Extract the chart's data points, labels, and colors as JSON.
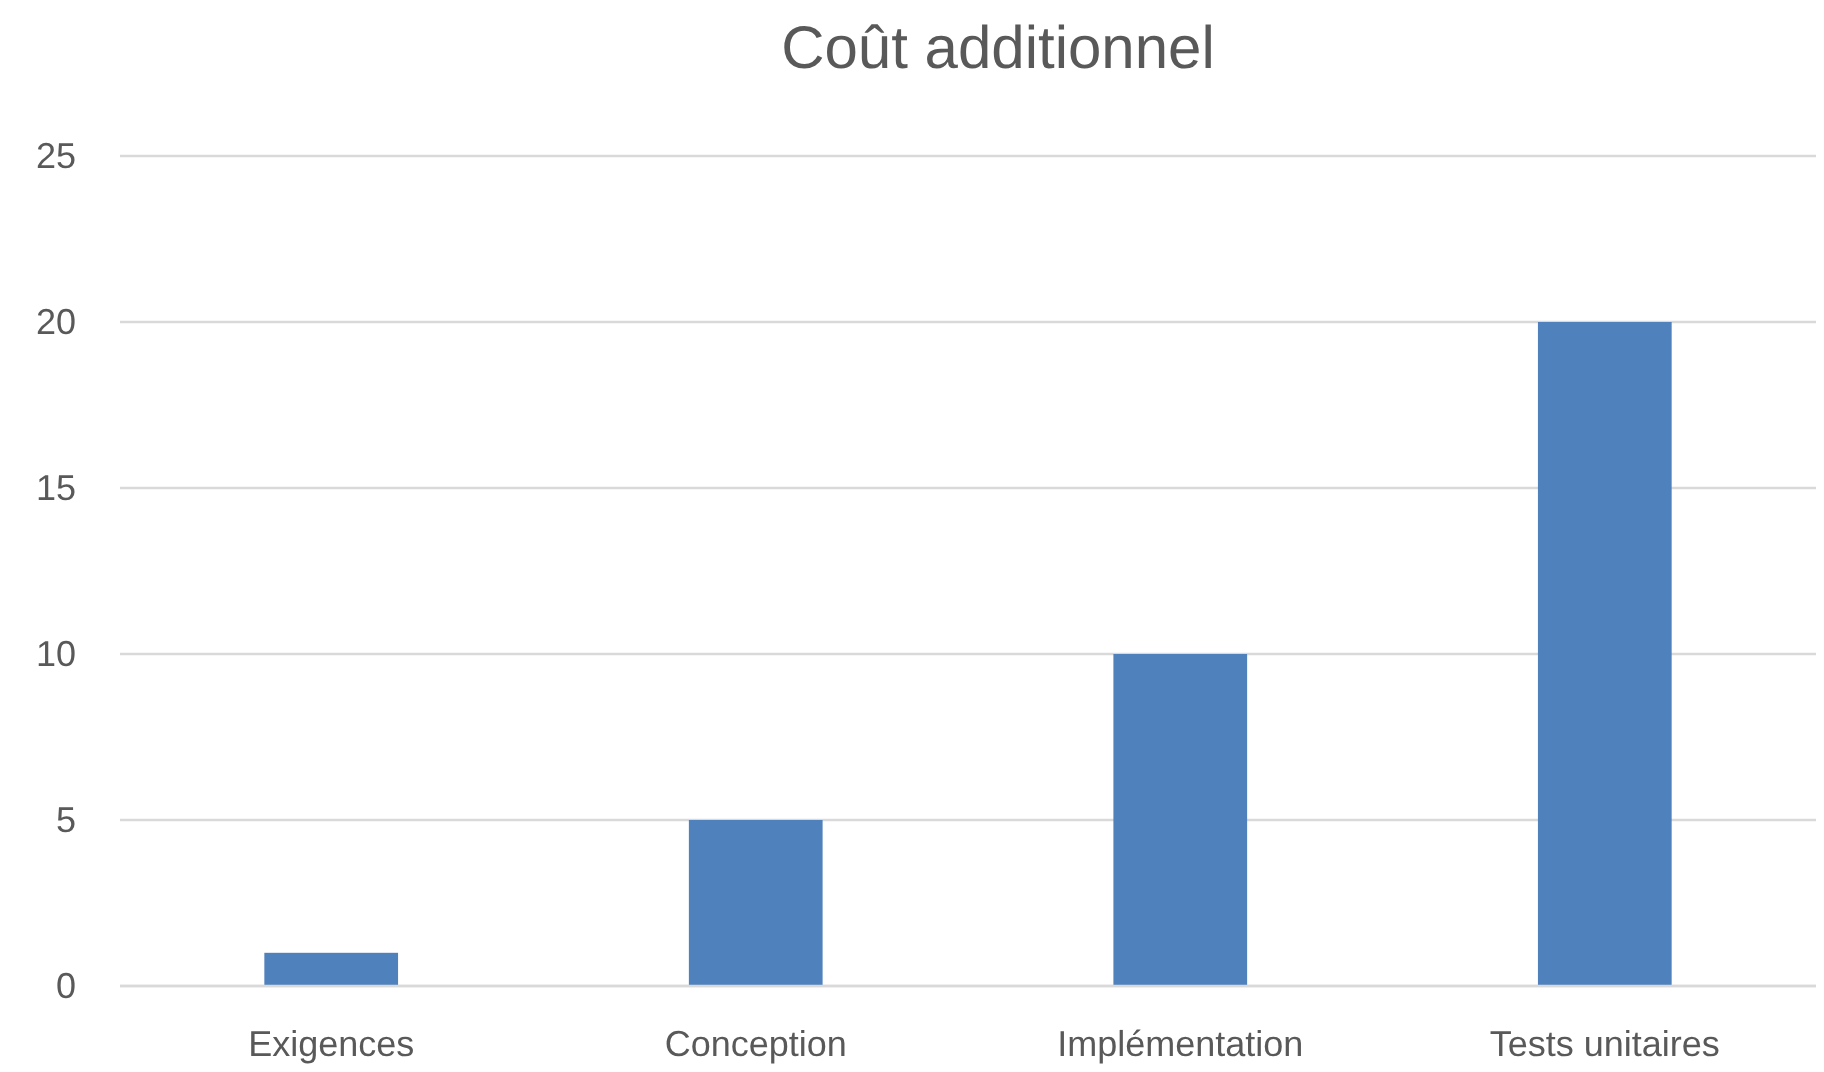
{
  "chart_data": {
    "type": "bar",
    "title": "Coût additionnel",
    "categories": [
      "Exigences",
      "Conception",
      "Implémentation",
      "Tests unitaires"
    ],
    "values": [
      1,
      5,
      10,
      20
    ],
    "color": "#4f81bd",
    "ylim": [
      0,
      25
    ],
    "yticks": [
      0,
      5,
      10,
      15,
      20,
      25
    ],
    "grid": "y"
  }
}
